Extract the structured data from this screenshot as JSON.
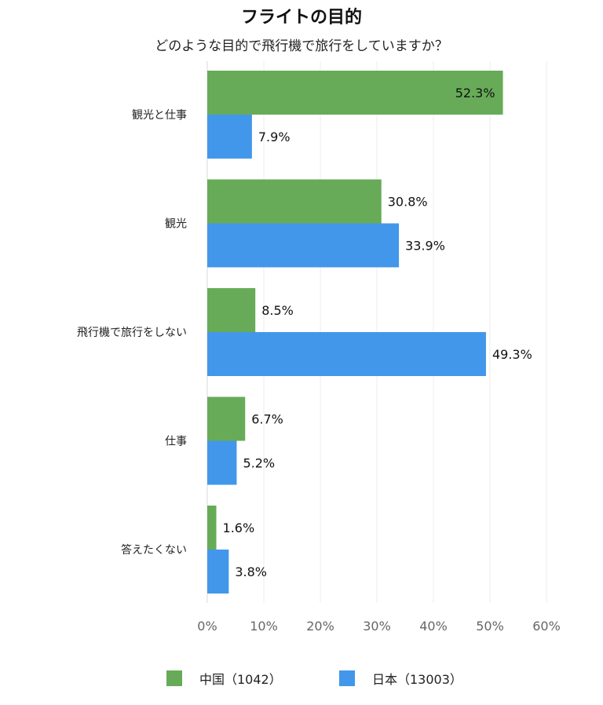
{
  "chart_data": {
    "type": "bar",
    "orientation": "horizontal",
    "title": "フライトの目的",
    "subtitle": "どのような目的で飛行機で旅行をしていますか？",
    "categories": [
      "観光と仕事",
      "観光",
      "飛行機で旅行をしない",
      "仕事",
      "答えたくない"
    ],
    "series": [
      {
        "name": "中国（1042）",
        "color": "#67ab58",
        "values": [
          52.3,
          30.8,
          8.5,
          6.7,
          1.6
        ]
      },
      {
        "name": "日本（13003）",
        "color": "#4297ea",
        "values": [
          7.9,
          33.9,
          49.3,
          5.2,
          3.8
        ]
      }
    ],
    "data_labels": [
      [
        "52.3%",
        "30.8%",
        "8.5%",
        "6.7%",
        "1.6%"
      ],
      [
        "7.9%",
        "33.9%",
        "49.3%",
        "5.2%",
        "3.8%"
      ]
    ],
    "xlim": [
      0,
      60
    ],
    "xticks": [
      0,
      10,
      20,
      30,
      40,
      50,
      60
    ],
    "xtick_labels": [
      "0%",
      "10%",
      "20%",
      "30%",
      "40%",
      "50%",
      "60%"
    ],
    "grid": true,
    "legend_position": "bottom"
  }
}
